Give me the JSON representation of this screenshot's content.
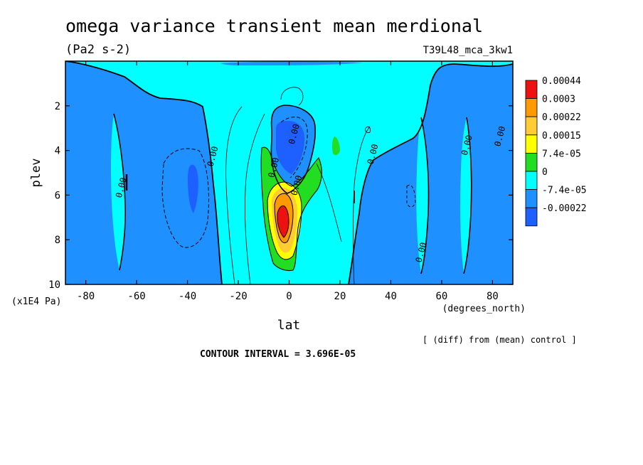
{
  "chart_data": {
    "type": "contour",
    "title": "omega variance transient mean merdional",
    "units": "(Pa2 s-2)",
    "run_label": "T39L48_mca_3kw1",
    "xlabel": "lat",
    "xunits": "(degrees_north)",
    "ylabel": "plev",
    "yunits": "(x1E4 Pa)",
    "xlim": [
      -88,
      88
    ],
    "ylim": [
      10,
      0
    ],
    "x_ticks": [
      -80,
      -60,
      -40,
      -20,
      0,
      20,
      40,
      60,
      80
    ],
    "x_tick_labels": [
      "-80",
      "-60",
      "-40",
      "-20",
      "0",
      "20",
      "40",
      "60",
      "80"
    ],
    "y_ticks": [
      2,
      4,
      6,
      8,
      10
    ],
    "y_tick_labels": [
      "2",
      "4",
      "6",
      "8",
      "10"
    ],
    "contour_interval_text": "CONTOUR INTERVAL = 3.696E-05",
    "footnote": "[ (diff) from (mean) control ]",
    "contour_labels": [
      "0.00",
      "0.00",
      "0.00",
      "0.00",
      "0.00",
      "0.00",
      "0.00",
      "0.00",
      "0.00"
    ],
    "colorbar": {
      "levels": [
        "0.00044",
        "0.0003",
        "0.00022",
        "0.00015",
        "7.4e-05",
        "0",
        "-7.4e-05",
        "-0.00022"
      ],
      "colors": [
        "#ee1111",
        "#ff9900",
        "#ffcc33",
        "#ffff00",
        "#22dd22",
        "#00ffff",
        "#1e90ff",
        "#1e5fff"
      ]
    },
    "fill_colors": {
      "neg_strong": "#1e5fff",
      "neg": "#1e90ff",
      "zero": "#00ffff",
      "pos1": "#22dd22",
      "pos2": "#ffff00",
      "pos3": "#ffcc33",
      "pos4": "#ff9900",
      "max": "#ee1111"
    },
    "features": [
      {
        "name": "equatorial positive maximum",
        "lat": -3,
        "plev": 7.1
      },
      {
        "name": "equatorial upper negative minimum",
        "lat": 0,
        "plev": 3.8
      },
      {
        "name": "southern subtropical negative",
        "lat": -38,
        "plev": 6.0
      }
    ]
  }
}
